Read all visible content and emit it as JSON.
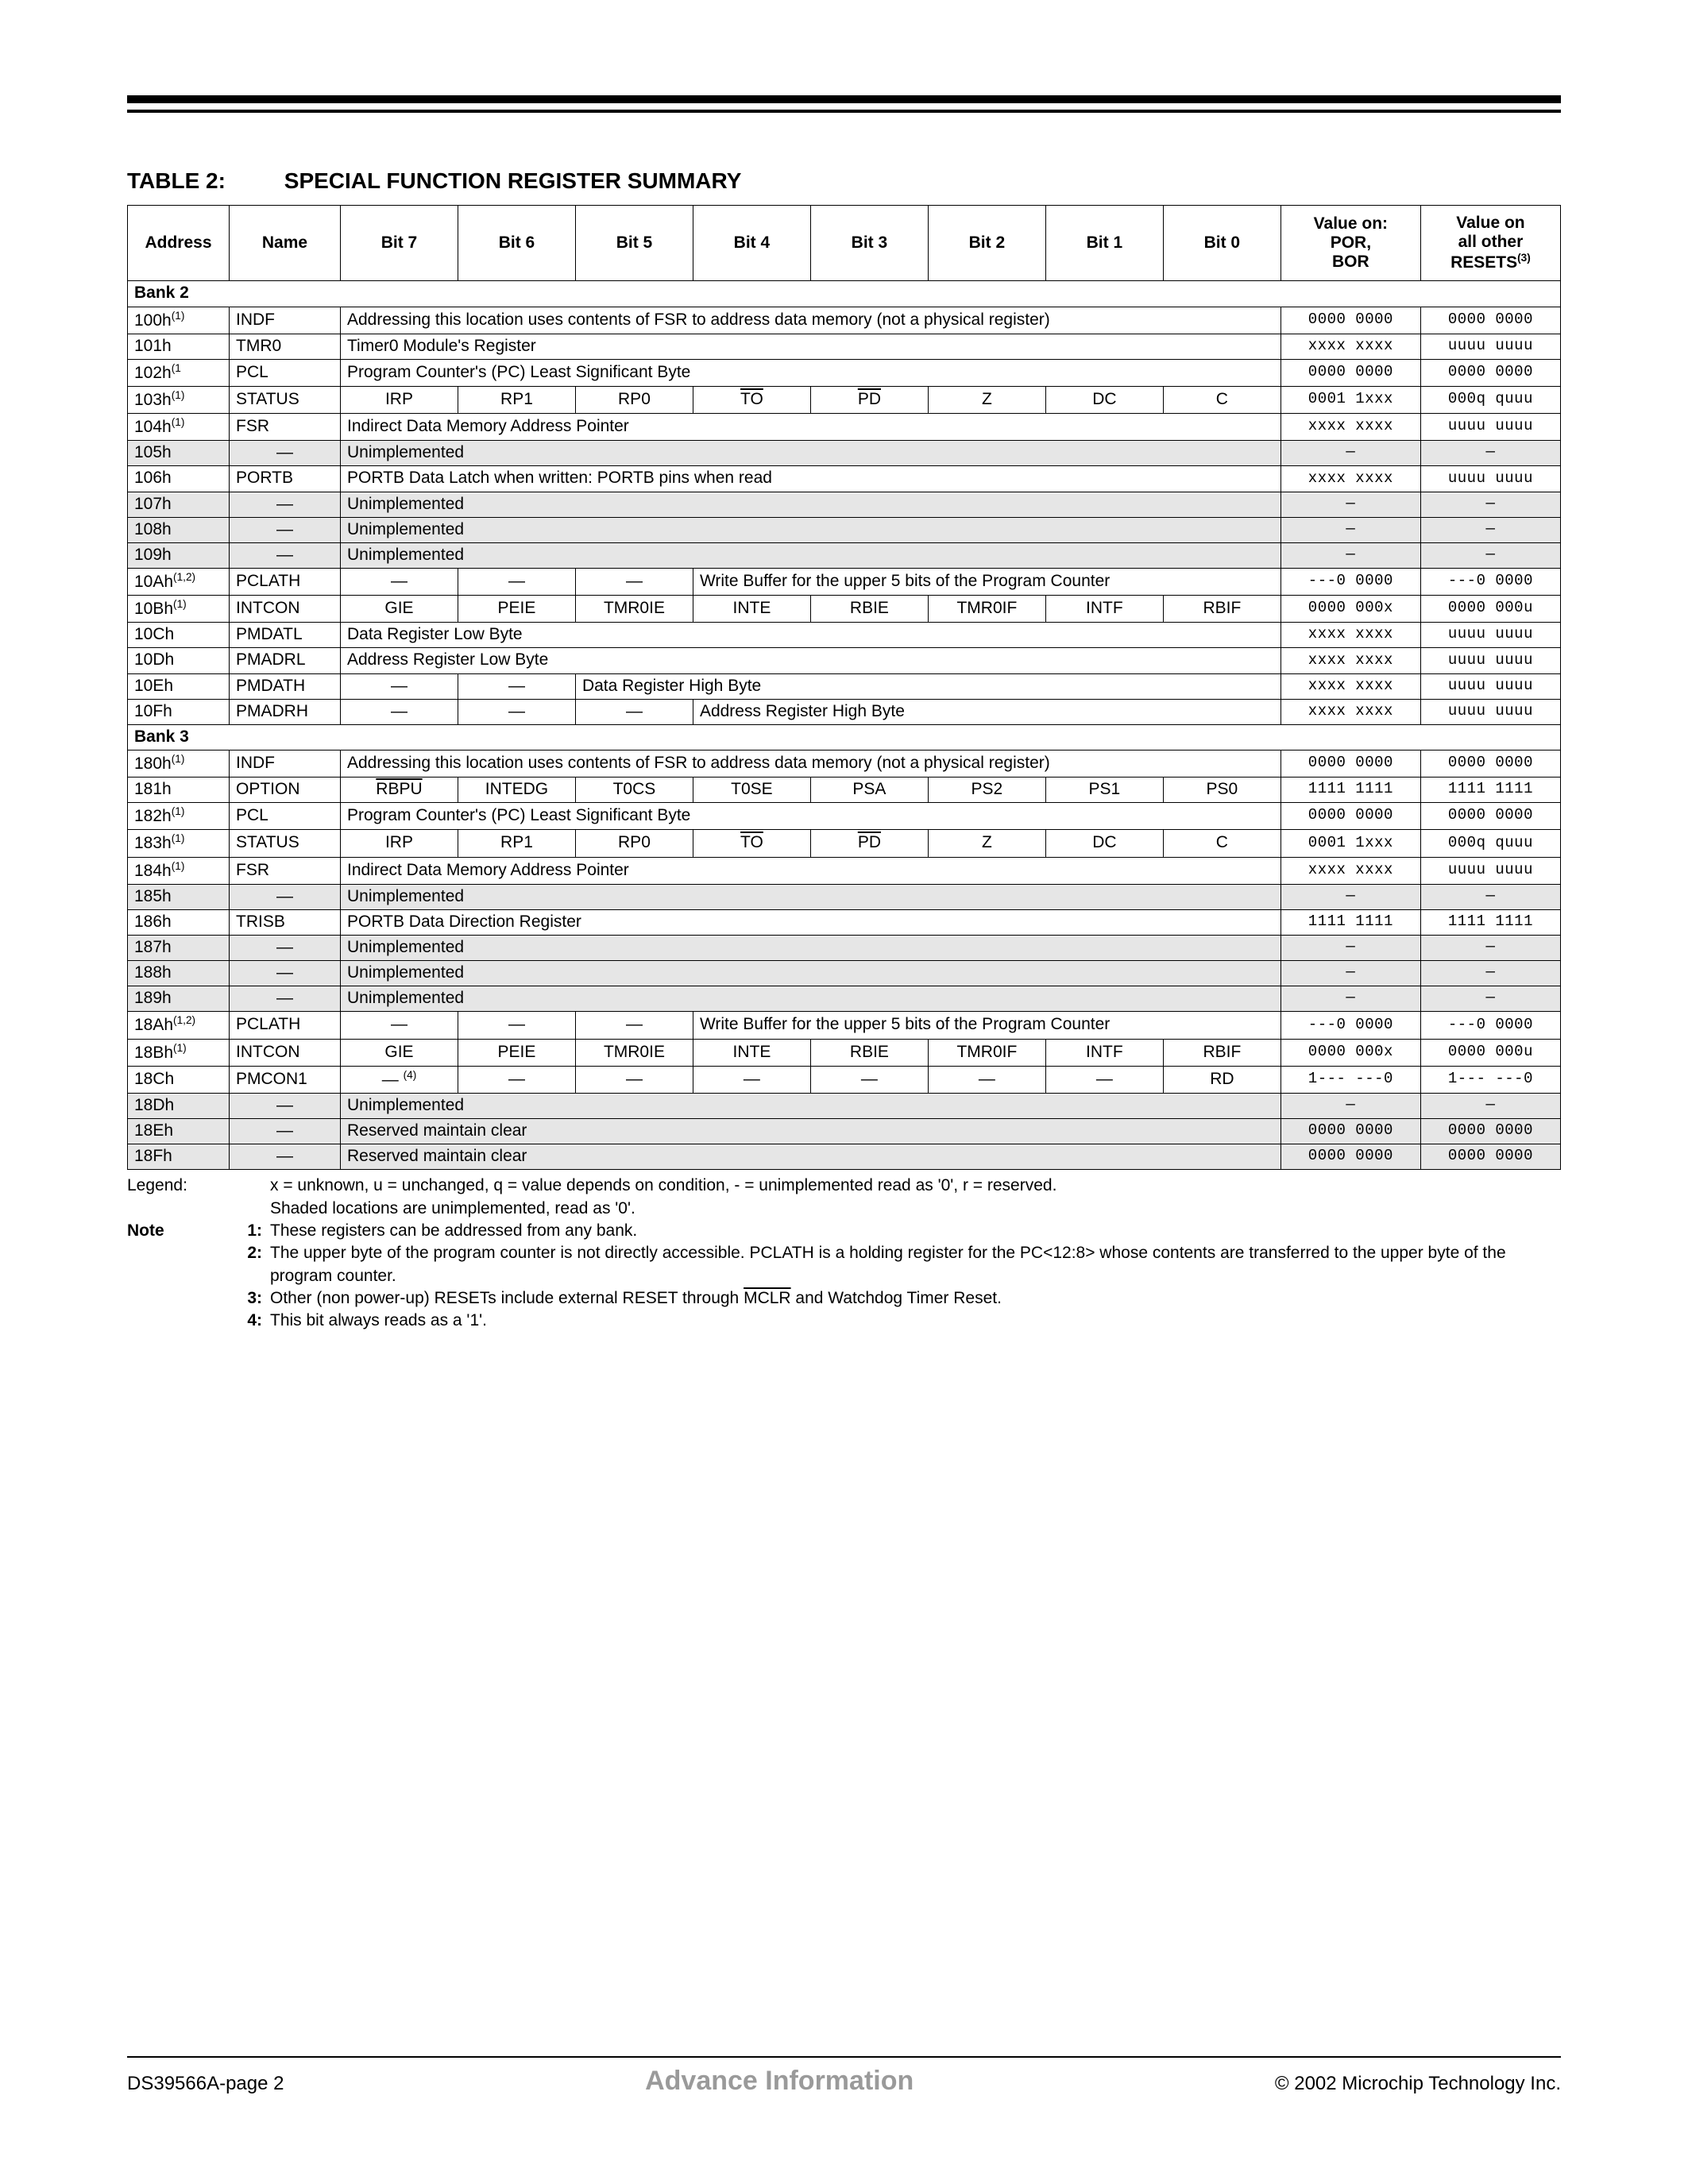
{
  "title_label": "TABLE 2:",
  "title_text": "SPECIAL FUNCTION REGISTER SUMMARY",
  "headers": {
    "address": "Address",
    "name": "Name",
    "bit7": "Bit 7",
    "bit6": "Bit 6",
    "bit5": "Bit 5",
    "bit4": "Bit 4",
    "bit3": "Bit 3",
    "bit2": "Bit 2",
    "bit1": "Bit 1",
    "bit0": "Bit 0",
    "por": "Value on:\nPOR,\nBOR",
    "other": "Value on\nall other\nRESETS",
    "other_sup": "(3)"
  },
  "bank2_label": "Bank 2",
  "bank3_label": "Bank 3",
  "rows": {
    "r100": {
      "addr": "100h",
      "sup": "(1)",
      "name": "INDF",
      "desc": "Addressing this location uses contents of FSR to address data memory (not a physical register)",
      "v1": "0000 0000",
      "v2": "0000 0000"
    },
    "r101": {
      "addr": "101h",
      "name": "TMR0",
      "desc": "Timer0 Module's Register",
      "v1": "xxxx xxxx",
      "v2": "uuuu uuuu"
    },
    "r102": {
      "addr": "102h",
      "sup": "(1",
      "name": "PCL",
      "desc": "Program Counter's (PC) Least Significant Byte",
      "v1": "0000 0000",
      "v2": "0000 0000"
    },
    "r103": {
      "addr": "103h",
      "sup": "(1)",
      "name": "STATUS",
      "b7": "IRP",
      "b6": "RP1",
      "b5": "RP0",
      "b4": "TO",
      "b3": "PD",
      "b2": "Z",
      "b1": "DC",
      "b0": "C",
      "v1": "0001 1xxx",
      "v2": "000q quuu"
    },
    "r104": {
      "addr": "104h",
      "sup": "(1)",
      "name": "FSR",
      "desc": "Indirect Data Memory Address Pointer",
      "v1": "xxxx xxxx",
      "v2": "uuuu uuuu"
    },
    "r105": {
      "addr": "105h",
      "name": "—",
      "desc": "Unimplemented",
      "v1": "—",
      "v2": "—"
    },
    "r106": {
      "addr": "106h",
      "name": "PORTB",
      "desc": "PORTB Data Latch when written: PORTB pins when read",
      "v1": "xxxx xxxx",
      "v2": "uuuu uuuu"
    },
    "r107": {
      "addr": "107h",
      "name": "—",
      "desc": "Unimplemented",
      "v1": "—",
      "v2": "—"
    },
    "r108": {
      "addr": "108h",
      "name": "—",
      "desc": "Unimplemented",
      "v1": "—",
      "v2": "—"
    },
    "r109": {
      "addr": "109h",
      "name": "—",
      "desc": "Unimplemented",
      "v1": "—",
      "v2": "—"
    },
    "r10A": {
      "addr": "10Ah",
      "sup": "(1,2)",
      "name": "PCLATH",
      "b7": "—",
      "b6": "—",
      "b5": "—",
      "desc": "Write Buffer for the upper 5 bits of the Program Counter",
      "v1": "---0 0000",
      "v2": "---0 0000"
    },
    "r10B": {
      "addr": "10Bh",
      "sup": "(1)",
      "name": "INTCON",
      "b7": "GIE",
      "b6": "PEIE",
      "b5": "TMR0IE",
      "b4": "INTE",
      "b3": "RBIE",
      "b2": "TMR0IF",
      "b1": "INTF",
      "b0": "RBIF",
      "v1": "0000 000x",
      "v2": "0000 000u"
    },
    "r10C": {
      "addr": "10Ch",
      "name": "PMDATL",
      "desc": "Data Register Low Byte",
      "v1": "xxxx xxxx",
      "v2": "uuuu uuuu"
    },
    "r10D": {
      "addr": "10Dh",
      "name": "PMADRL",
      "desc": "Address Register Low Byte",
      "v1": "xxxx xxxx",
      "v2": "uuuu uuuu"
    },
    "r10E": {
      "addr": "10Eh",
      "name": "PMDATH",
      "b7": "—",
      "b6": "—",
      "desc": "Data Register High Byte",
      "v1": "xxxx xxxx",
      "v2": "uuuu uuuu"
    },
    "r10F": {
      "addr": "10Fh",
      "name": "PMADRH",
      "b7": "—",
      "b6": "—",
      "b5": "—",
      "desc": "Address Register High Byte",
      "v1": "xxxx xxxx",
      "v2": "uuuu uuuu"
    },
    "r180": {
      "addr": "180h",
      "sup": "(1)",
      "name": "INDF",
      "desc": "Addressing this location uses contents of FSR to address data memory (not a physical register)",
      "v1": "0000 0000",
      "v2": "0000 0000"
    },
    "r181": {
      "addr": "181h",
      "name": "OPTION",
      "b7": "RBPU",
      "b6": "INTEDG",
      "b5": "T0CS",
      "b4": "T0SE",
      "b3": "PSA",
      "b2": "PS2",
      "b1": "PS1",
      "b0": "PS0",
      "v1": "1111 1111",
      "v2": "1111 1111"
    },
    "r182": {
      "addr": "182h",
      "sup": "(1)",
      "name": "PCL",
      "desc": "Program Counter's (PC)  Least Significant Byte",
      "v1": "0000 0000",
      "v2": "0000 0000"
    },
    "r183": {
      "addr": "183h",
      "sup": "(1)",
      "name": "STATUS",
      "b7": "IRP",
      "b6": "RP1",
      "b5": "RP0",
      "b4": "TO",
      "b3": "PD",
      "b2": "Z",
      "b1": "DC",
      "b0": "C",
      "v1": "0001 1xxx",
      "v2": "000q quuu"
    },
    "r184": {
      "addr": "184h",
      "sup": "(1)",
      "name": "FSR",
      "desc": "Indirect Data Memory Address Pointer",
      "v1": "xxxx xxxx",
      "v2": "uuuu uuuu"
    },
    "r185": {
      "addr": "185h",
      "name": "—",
      "desc": "Unimplemented",
      "v1": "—",
      "v2": "—"
    },
    "r186": {
      "addr": "186h",
      "name": "TRISB",
      "desc": "PORTB Data Direction Register",
      "v1": "1111 1111",
      "v2": "1111 1111"
    },
    "r187": {
      "addr": "187h",
      "name": "—",
      "desc": "Unimplemented",
      "v1": "—",
      "v2": "—"
    },
    "r188": {
      "addr": "188h",
      "name": "—",
      "desc": "Unimplemented",
      "v1": "—",
      "v2": "—"
    },
    "r189": {
      "addr": "189h",
      "name": "—",
      "desc": "Unimplemented",
      "v1": "—",
      "v2": "—"
    },
    "r18A": {
      "addr": "18Ah",
      "sup": "(1,2)",
      "name": "PCLATH",
      "b7": "—",
      "b6": "—",
      "b5": "—",
      "desc": "Write Buffer for the upper 5 bits of the Program Counter",
      "v1": "---0 0000",
      "v2": "---0 0000"
    },
    "r18B": {
      "addr": "18Bh",
      "sup": "(1)",
      "name": "INTCON",
      "b7": "GIE",
      "b6": "PEIE",
      "b5": "TMR0IE",
      "b4": "INTE",
      "b3": "RBIE",
      "b2": "TMR0IF",
      "b1": "INTF",
      "b0": "RBIF",
      "v1": "0000 000x",
      "v2": "0000 000u"
    },
    "r18C": {
      "addr": "18Ch",
      "name": "PMCON1",
      "b7": "—",
      "b7sup": "(4)",
      "b6": "—",
      "b5": "—",
      "b4": "—",
      "b3": "—",
      "b2": "—",
      "b1": "—",
      "b0": "RD",
      "v1": "1--- ---0",
      "v2": "1--- ---0"
    },
    "r18D": {
      "addr": "18Dh",
      "name": "—",
      "desc": "Unimplemented",
      "v1": "—",
      "v2": "—"
    },
    "r18E": {
      "addr": "18Eh",
      "name": "—",
      "desc": "Reserved maintain clear",
      "v1": "0000 0000",
      "v2": "0000 0000"
    },
    "r18F": {
      "addr": "18Fh",
      "name": "—",
      "desc": "Reserved maintain clear",
      "v1": "0000 0000",
      "v2": "0000 0000"
    }
  },
  "legend": {
    "label": "Legend:",
    "l1": "x = unknown, u = unchanged, q = value depends on condition, - = unimplemented read as '0', r = reserved.",
    "l2": "Shaded locations are unimplemented, read as '0'."
  },
  "notes": {
    "label": "Note",
    "n1": "These registers can be addressed from any bank.",
    "n2": "The upper byte of the program counter is not directly accessible. PCLATH is a holding register for the PC<12:8> whose contents are transferred to the upper byte of the program counter.",
    "n3a": "Other (non power-up) RESETs include external RESET through ",
    "n3b": "MCLR",
    "n3c": " and Watchdog Timer Reset.",
    "n4": "This bit always reads as a '1'."
  },
  "footer": {
    "left": "DS39566A-page 2",
    "center": "Advance Information",
    "right": "2002 Microchip Technology Inc.",
    "copy": "©"
  }
}
